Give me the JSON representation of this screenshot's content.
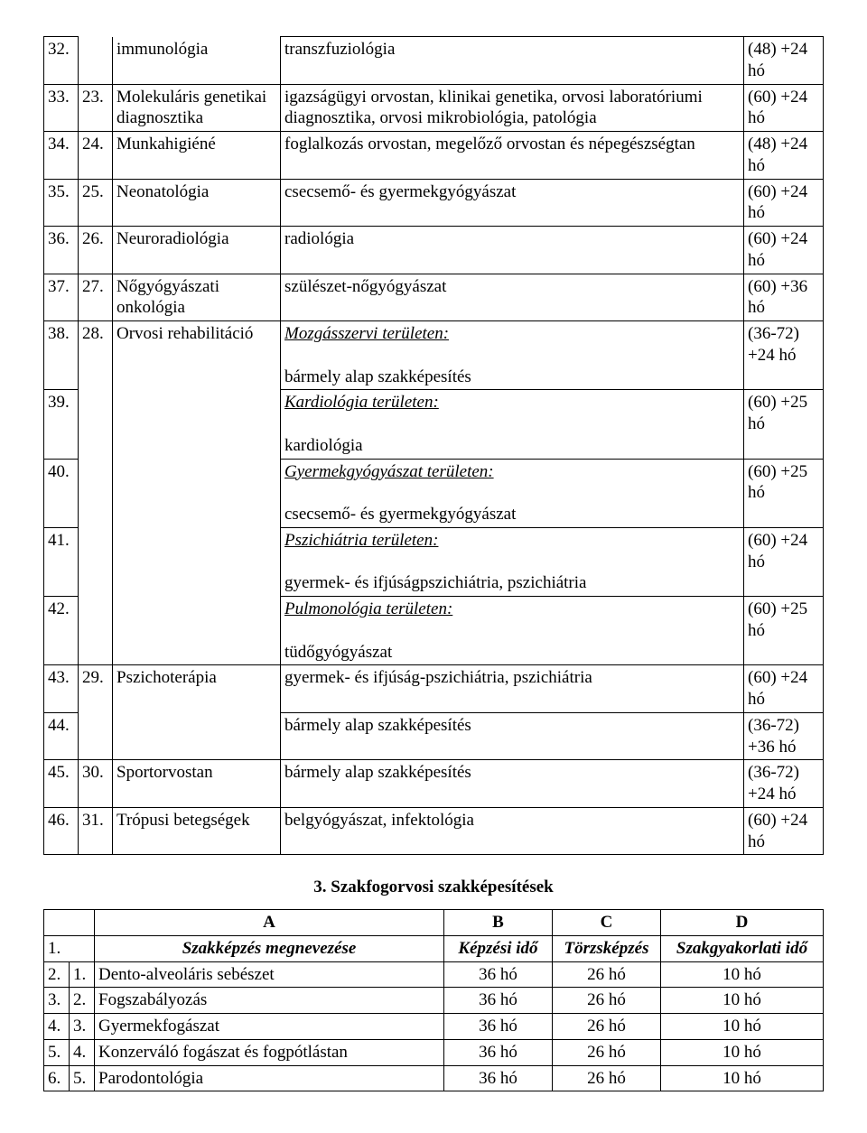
{
  "t1": {
    "rows": [
      {
        "n1": "32.",
        "n2": "",
        "b": "immunológia",
        "c": "transzfuziológia",
        "d": "(48) +24 hó",
        "b_tb": "none",
        "n2_tb": "none"
      },
      {
        "n1": "33.",
        "n2": "23.",
        "b": "Molekuláris genetikai diagnosztika",
        "c": "igazságügyi orvostan, klinikai genetika, orvosi laboratóriumi diagnosztika, orvosi mikrobiológia, patológia",
        "d": "(60) +24 hó"
      },
      {
        "n1": "34.",
        "n2": "24.",
        "b": "Munkahigiéné",
        "c": "foglalkozás orvostan, megelőző orvostan és népegészségtan",
        "d": "(48) +24 hó"
      },
      {
        "n1": "35.",
        "n2": "25.",
        "b": "Neonatológia",
        "c": "csecsemő- és gyermekgyógyászat",
        "d": "(60) +24 hó"
      },
      {
        "n1": "36.",
        "n2": "26.",
        "b": "Neuroradiológia",
        "c": "radiológia",
        "d": "(60) +24 hó"
      },
      {
        "n1": "37.",
        "n2": "27.",
        "b": "Nőgyógyászati onkológia",
        "c": "szülészet-nőgyógyászat",
        "d": "(60) +36 hó"
      },
      {
        "n1": "38.",
        "n2": "28.",
        "b": "Orvosi rehabilitáció",
        "c_title": "Mozgásszervi területen:",
        "c_body": "bármely alap szakképesítés",
        "d": "(36-72) +24 hó",
        "b_open_bottom": true,
        "n2_open_bottom": true
      },
      {
        "n1": "39.",
        "n2": "",
        "b": "",
        "c_title": "Kardiológia területen:",
        "c_body": "kardiológia",
        "d": "(60) +25 hó",
        "b_tb": "mid",
        "n2_tb": "mid"
      },
      {
        "n1": "40.",
        "n2": "",
        "b": "",
        "c_title": "Gyermekgyógyászat területen:",
        "c_body": "csecsemő- és gyermekgyógyászat",
        "d": "(60) +25 hó",
        "b_tb": "mid",
        "n2_tb": "mid"
      },
      {
        "n1": "41.",
        "n2": "",
        "b": "",
        "c_title": "Pszichiátria területen:",
        "c_body": "gyermek- és ifjúságpszichiátria, pszichiátria",
        "d": "(60) +24 hó",
        "b_tb": "mid",
        "n2_tb": "mid"
      },
      {
        "n1": "42.",
        "n2": "",
        "b": "",
        "c_title": "Pulmonológia területen:",
        "c_body": "tüdőgyógyászat",
        "d": "(60) +25 hó",
        "b_tb": "bottom",
        "n2_tb": "bottom"
      },
      {
        "n1": "43.",
        "n2": "29.",
        "b": "Pszichoterápia",
        "c": "gyermek- és ifjúság-pszichiátria, pszichiátria",
        "d": "(60) +24 hó",
        "b_open_bottom": true,
        "n2_open_bottom": true
      },
      {
        "n1": "44.",
        "n2": "",
        "b": "",
        "c": "bármely alap szakképesítés",
        "d": "(36-72) +36 hó",
        "b_tb": "bottom",
        "n2_tb": "bottom"
      },
      {
        "n1": "45.",
        "n2": "30.",
        "b": "Sportorvostan",
        "c": "bármely alap szakképesítés",
        "d": "(36-72) +24 hó"
      },
      {
        "n1": "46.",
        "n2": "31.",
        "b": "Trópusi betegségek",
        "c": "belgyógyászat, infektológia",
        "d": "(60) +24 hó"
      }
    ]
  },
  "section_title": "3. Szakfogorvosi szakképesítések",
  "t2": {
    "header": {
      "a": "",
      "b": "A",
      "c": "B",
      "d": "C",
      "e": "D"
    },
    "subheader": {
      "n": "1.",
      "b": "Szakképzés megnevezése",
      "c": "Képzési idő",
      "d": "Törzsképzés",
      "e": "Szakgyakorlati idő"
    },
    "rows": [
      {
        "n1": "2.",
        "n2": "1.",
        "b": "Dento-alveoláris sebészet",
        "c": "36 hó",
        "d": "26 hó",
        "e": "10 hó"
      },
      {
        "n1": "3.",
        "n2": "2.",
        "b": "Fogszabályozás",
        "c": "36 hó",
        "d": "26 hó",
        "e": "10 hó"
      },
      {
        "n1": "4.",
        "n2": "3.",
        "b": "Gyermekfogászat",
        "c": "36 hó",
        "d": "26 hó",
        "e": "10 hó"
      },
      {
        "n1": "5.",
        "n2": "4.",
        "b": "Konzerváló fogászat és fogpótlástan",
        "c": "36 hó",
        "d": "26 hó",
        "e": "10 hó"
      },
      {
        "n1": "6.",
        "n2": "5.",
        "b": "Parodontológia",
        "c": "36 hó",
        "d": "26 hó",
        "e": "10 hó"
      }
    ]
  }
}
